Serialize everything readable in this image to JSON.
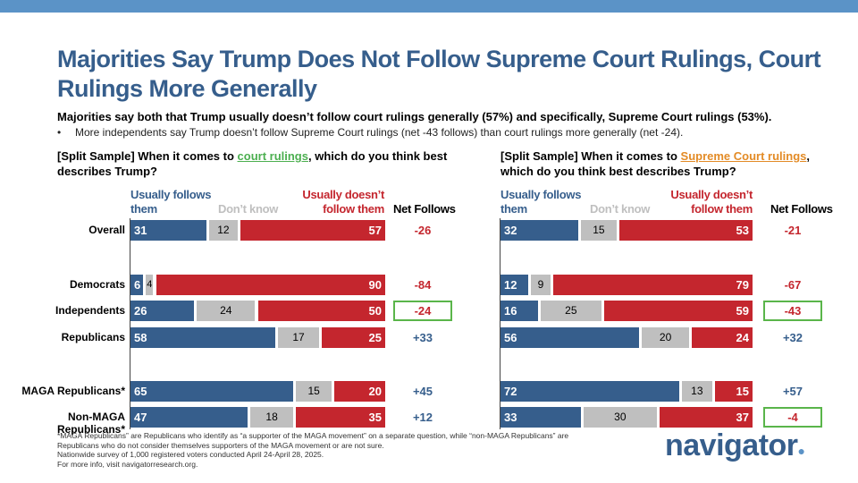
{
  "title": "Majorities Say Trump Does Not Follow Supreme Court Rulings, Court Rulings More Generally",
  "subhead": "Majorities say both that Trump usually doesn’t follow court rulings generally (57%) and specifically, Supreme Court rulings (53%).",
  "bullet_marker": "•",
  "bullet": "More independents say Trump doesn’t follow Supreme Court rulings (net -43 follows) than court rulings more generally (net -24).",
  "left_question": {
    "pre": "[Split Sample] When it comes to ",
    "highlight": "court rulings",
    "post": ", which do you think best describes Trump?"
  },
  "right_question": {
    "pre": "[Split Sample] When it comes to ",
    "highlight": "Supreme Court rulings",
    "post": ", which do you think best describes Trump?"
  },
  "column_headers": {
    "follows": "Usually follows them",
    "dont_know": "Don’t know",
    "not_follow": "Usually doesn’t follow them",
    "net": "Net Follows"
  },
  "chart_data": [
    {
      "type": "bar",
      "stacked": true,
      "orientation": "horizontal",
      "title": "court rulings",
      "categories": [
        "Overall",
        "Democrats",
        "Independents",
        "Republicans",
        "MAGA Republicans*",
        "Non-MAGA Republicans*"
      ],
      "series": [
        {
          "name": "Usually follows them",
          "values": [
            31,
            6,
            26,
            58,
            65,
            47
          ]
        },
        {
          "name": "Don’t know",
          "values": [
            12,
            4,
            24,
            17,
            15,
            18
          ]
        },
        {
          "name": "Usually doesn’t follow them",
          "values": [
            57,
            90,
            50,
            25,
            20,
            35
          ]
        }
      ],
      "net_follows": [
        "-26",
        "-84",
        "-24",
        "+33",
        "+45",
        "+12"
      ],
      "highlighted_net": [
        false,
        false,
        true,
        false,
        false,
        false
      ],
      "xlim": [
        0,
        100
      ]
    },
    {
      "type": "bar",
      "stacked": true,
      "orientation": "horizontal",
      "title": "Supreme Court rulings",
      "categories": [
        "Overall",
        "Democrats",
        "Independents",
        "Republicans",
        "MAGA Republicans*",
        "Non-MAGA Republicans*"
      ],
      "series": [
        {
          "name": "Usually follows them",
          "values": [
            32,
            12,
            16,
            56,
            72,
            33
          ]
        },
        {
          "name": "Don’t know",
          "values": [
            15,
            9,
            25,
            20,
            13,
            30
          ]
        },
        {
          "name": "Usually doesn’t follow them",
          "values": [
            53,
            79,
            59,
            24,
            15,
            37
          ]
        }
      ],
      "net_follows": [
        "-21",
        "-67",
        "-43",
        "+32",
        "+57",
        "-4"
      ],
      "highlighted_net": [
        false,
        false,
        true,
        false,
        false,
        true
      ],
      "xlim": [
        0,
        100
      ]
    }
  ],
  "colors": {
    "follows": "#365e8c",
    "dont_know": "#bfbfbf",
    "not_follow": "#c4262e",
    "highlight_box": "#5ab54a",
    "accent_bar": "#5b93c7"
  },
  "footnote": [
    "*MAGA Republicans” are Republicans who identify as “a supporter of the MAGA movement” on a separate question, while “non-MAGA Republicans” are Republicans who do not consider themselves supporters of the MAGA movement or are not sure.",
    "Nationwide survey of 1,000 registered voters conducted April 24-April 28, 2025.",
    "For more info, visit navigatorresearch.org."
  ],
  "logo": {
    "text": "navigator",
    "mark": "●"
  }
}
